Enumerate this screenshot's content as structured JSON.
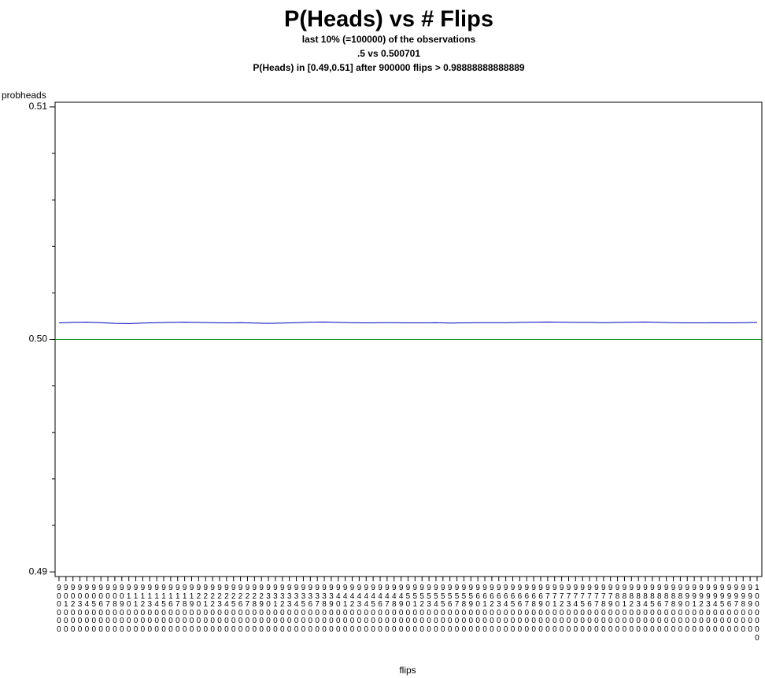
{
  "chart_data": {
    "type": "line",
    "title": "P(Heads) vs # Flips",
    "subtitles": [
      "last 10% (=100000) of the observations",
      ".5 vs 0.500701",
      "P(Heads) in [0.49,0.51] after 900000 flips > 0.98888888888889"
    ],
    "ylabel": "probheads",
    "xlabel": "flips",
    "x": [
      900000,
      902000,
      904000,
      906000,
      908000,
      910000,
      912000,
      914000,
      916000,
      918000,
      920000,
      922000,
      924000,
      926000,
      928000,
      930000,
      932000,
      934000,
      936000,
      938000,
      940000,
      942000,
      944000,
      946000,
      948000,
      950000,
      952000,
      954000,
      956000,
      958000,
      960000,
      962000,
      964000,
      966000,
      968000,
      970000,
      972000,
      974000,
      976000,
      978000,
      980000,
      982000,
      984000,
      986000,
      988000,
      990000,
      992000,
      994000,
      996000,
      998000,
      1000000
    ],
    "series": [
      {
        "color": "#0000c0",
        "values": [
          0.50071,
          0.50073,
          0.50074,
          0.50072,
          0.50069,
          0.50068,
          0.5007,
          0.50072,
          0.50073,
          0.50074,
          0.50073,
          0.50072,
          0.50071,
          0.50072,
          0.5007,
          0.50069,
          0.5007,
          0.50072,
          0.50074,
          0.50075,
          0.50073,
          0.50072,
          0.50071,
          0.50072,
          0.50072,
          0.50071,
          0.50071,
          0.50072,
          0.5007,
          0.50071,
          0.50072,
          0.50072,
          0.50072,
          0.50073,
          0.50074,
          0.50075,
          0.50074,
          0.50073,
          0.50073,
          0.50072,
          0.50073,
          0.50074,
          0.50075,
          0.50073,
          0.50072,
          0.50071,
          0.50071,
          0.50072,
          0.50071,
          0.50072,
          0.50073
        ]
      }
    ],
    "reference_line": {
      "value": 0.5,
      "color": "#008000"
    },
    "xlim": [
      899440,
      1000680
    ],
    "ylim": [
      0.4898,
      0.5102
    ],
    "yticks": [
      0.49,
      {
        "value": 0.5,
        "label": "0.50"
      },
      0.51
    ],
    "minor_yticks": [
      0.492,
      0.494,
      0.496,
      0.498,
      0.502,
      0.504,
      0.506,
      0.508
    ],
    "xticks": [
      900000,
      901000,
      902000,
      903000,
      904000,
      905000,
      906000,
      907000,
      908000,
      909000,
      910000,
      911000,
      912000,
      913000,
      914000,
      915000,
      916000,
      917000,
      918000,
      919000,
      920000,
      921000,
      922000,
      923000,
      924000,
      925000,
      926000,
      927000,
      928000,
      929000,
      930000,
      931000,
      932000,
      933000,
      934000,
      935000,
      936000,
      937000,
      938000,
      939000,
      940000,
      941000,
      942000,
      943000,
      944000,
      945000,
      946000,
      947000,
      948000,
      949000,
      950000,
      951000,
      952000,
      953000,
      954000,
      955000,
      956000,
      957000,
      958000,
      959000,
      960000,
      961000,
      962000,
      963000,
      964000,
      965000,
      966000,
      967000,
      968000,
      969000,
      970000,
      971000,
      972000,
      973000,
      974000,
      975000,
      976000,
      977000,
      978000,
      979000,
      980000,
      981000,
      982000,
      983000,
      984000,
      985000,
      986000,
      987000,
      988000,
      989000,
      990000,
      991000,
      992000,
      993000,
      994000,
      995000,
      996000,
      997000,
      998000,
      999000,
      1000000
    ]
  }
}
